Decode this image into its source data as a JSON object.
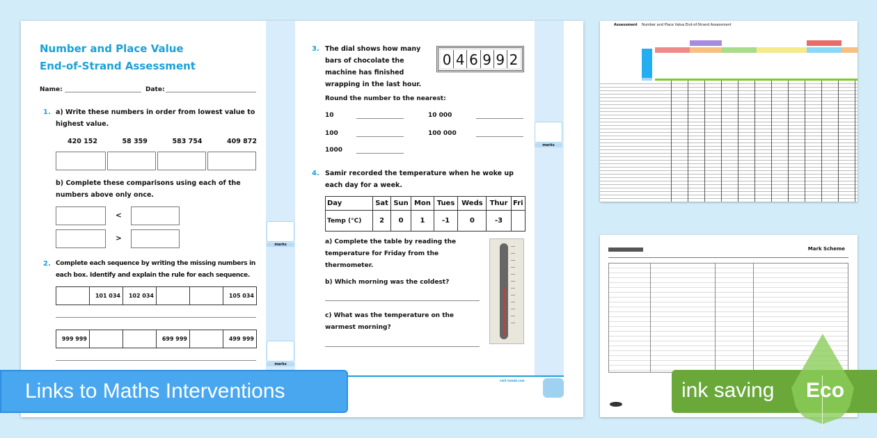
{
  "worksheet": {
    "title": "Number and Place Value",
    "subtitle": "End-of-Strand Assessment",
    "name_label": "Name:",
    "date_label": "Date:",
    "q1": {
      "number": "1.",
      "a": "a) Write these numbers in order from lowest value to highest value.",
      "numbers": [
        "420 152",
        "58 359",
        "583 754",
        "409 872"
      ],
      "b": "b) Complete these comparisons using each of the numbers above only once.",
      "symbols": [
        "<",
        ">"
      ]
    },
    "q2": {
      "number": "2.",
      "text": "Complete each sequence by writing the missing numbers in each box. Identify and explain the rule for each sequence.",
      "seq1": [
        "",
        "101 034",
        "102 034",
        "",
        "",
        "105 034"
      ],
      "seq2": [
        "999 999",
        "",
        "",
        "699 999",
        "",
        "499 999"
      ]
    },
    "q3": {
      "number": "3.",
      "text": "The dial shows how many bars of chocolate the machine has finished wrapping in the last hour.",
      "dial": [
        "0",
        "4",
        "6",
        "9",
        "9",
        "2"
      ],
      "round_label": "Round the number to the nearest:",
      "options": [
        "10",
        "100",
        "1000",
        "10 000",
        "100 000"
      ]
    },
    "q4": {
      "number": "4.",
      "text": "Samir recorded the temperature when he woke up each day for a week.",
      "days_header": "Day",
      "temp_header": "Temp (°C)",
      "days": [
        "Sat",
        "Sun",
        "Mon",
        "Tues",
        "Weds",
        "Thur",
        "Fri"
      ],
      "temps": [
        "2",
        "0",
        "1",
        "-1",
        "0",
        "-3",
        ""
      ],
      "a": "a) Complete the table by reading the temperature for Friday from the thermometer.",
      "b": "b) Which morning was the coldest?",
      "c": "c) What was the temperature on the warmest morning?"
    },
    "marks_label": "marks",
    "footer_url": "visit twinkl.com"
  },
  "spreadsheet": {
    "title": "Assessment",
    "subtitle": "Number and Place Value End-of-Strand Assessment"
  },
  "markscheme": {
    "title": "Mark Scheme"
  },
  "banners": {
    "left": "Links to Maths Interventions",
    "right": "ink saving",
    "eco": "Eco"
  },
  "colors": {
    "accent": "#1aa0d8",
    "banner_blue": "#48a7ef",
    "eco_green": "#6aa83a",
    "background": "#d3ecf9"
  }
}
